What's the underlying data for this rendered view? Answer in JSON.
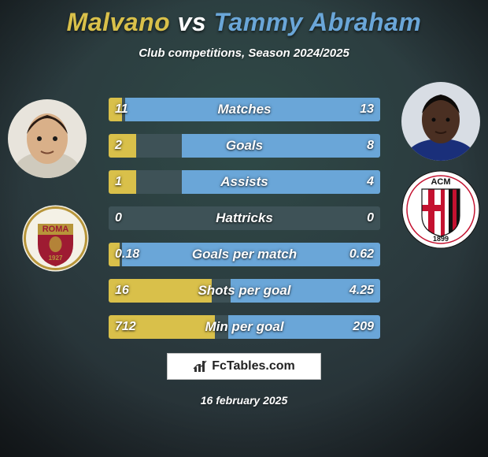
{
  "background": {
    "gradient_top": "#2f4a47",
    "gradient_mid": "#2b3a3e",
    "gradient_bottom": "#232b30",
    "vignette": "rgba(0,0,0,0.55)"
  },
  "title": {
    "text_left": "Malvano",
    "text_vs": " vs ",
    "text_right": "Tammy Abraham",
    "color_left": "#d9c04a",
    "color_vs": "#ffffff",
    "color_right": "#6aa6d8",
    "fontsize": 32
  },
  "subtitle": "Club competitions, Season 2024/2025",
  "players": {
    "left": {
      "name": "Malvano",
      "avatar_bg": "#e8e4dc",
      "skin": "#d9b089",
      "hair": "#2a1c14"
    },
    "right": {
      "name": "Tammy Abraham",
      "avatar_bg": "#d8dde4",
      "skin": "#4a2f22",
      "hair": "#0e0b09",
      "shirt": "#1a2f7a"
    }
  },
  "clubs": {
    "left": {
      "name": "AS Roma",
      "bg": "#f4f1e6",
      "ring": "#b7953a",
      "inner": "#9e1b32",
      "text": "ROMA",
      "sub": "1927",
      "text_color": "#b7953a"
    },
    "right": {
      "name": "AC Milan",
      "bg": "#ffffff",
      "red": "#c41230",
      "black": "#111111",
      "text": "ACM",
      "sub": "1899"
    }
  },
  "bars": {
    "track_color": "#3e5257",
    "left_color": "#d9c04a",
    "right_color": "#6aa6d8",
    "label_fontsize": 17,
    "value_fontsize": 16,
    "rows": [
      {
        "label": "Matches",
        "left_val": "11",
        "right_val": "13",
        "left_pct": 5,
        "right_pct": 94
      },
      {
        "label": "Goals",
        "left_val": "2",
        "right_val": "8",
        "left_pct": 10,
        "right_pct": 73
      },
      {
        "label": "Assists",
        "left_val": "1",
        "right_val": "4",
        "left_pct": 10,
        "right_pct": 73
      },
      {
        "label": "Hattricks",
        "left_val": "0",
        "right_val": "0",
        "left_pct": 0,
        "right_pct": 0
      },
      {
        "label": "Goals per match",
        "left_val": "0.18",
        "right_val": "0.62",
        "left_pct": 4,
        "right_pct": 95
      },
      {
        "label": "Shots per goal",
        "left_val": "16",
        "right_val": "4.25",
        "left_pct": 38,
        "right_pct": 55
      },
      {
        "label": "Min per goal",
        "left_val": "712",
        "right_val": "209",
        "left_pct": 39,
        "right_pct": 56
      }
    ]
  },
  "branding": {
    "logo_text": "FcTables.com",
    "logo_icon": "chart-icon"
  },
  "date": "16 february 2025"
}
